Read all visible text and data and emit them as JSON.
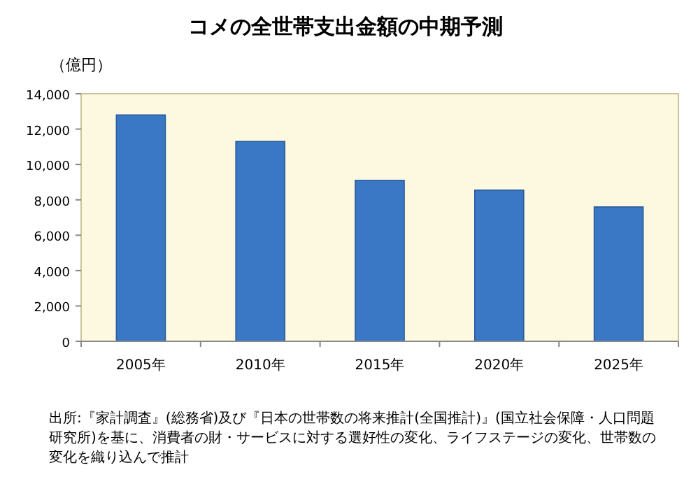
{
  "chart_data": {
    "type": "bar",
    "title": "コメの全世帯支出金額の中期予測",
    "ylabel": "（億円）",
    "categories": [
      "2005年",
      "2010年",
      "2015年",
      "2020年",
      "2025年"
    ],
    "values": [
      12800,
      11300,
      9100,
      8550,
      7600
    ],
    "color": "#3a78c6",
    "ylim": [
      0,
      14000
    ],
    "yticks": [
      {
        "value": 0,
        "label": "0"
      },
      {
        "value": 2000,
        "label": "2,000"
      },
      {
        "value": 4000,
        "label": "4,000"
      },
      {
        "value": 6000,
        "label": "6,000"
      },
      {
        "value": 8000,
        "label": "8,000"
      },
      {
        "value": 10000,
        "label": "10,000"
      },
      {
        "value": 12000,
        "label": "12,000"
      },
      {
        "value": 14000,
        "label": "14,000"
      }
    ],
    "grid": false,
    "annotations": [
      "出所:『家計調査』(総務省)及び『日本の世帯数の将来推計(全国推計)』(国立社会保障・人口問題研究所)を基に、消費者の財・サービスに対する選好性の変化、ライフステージの変化、世帯数の変化を織り込んで推計"
    ]
  }
}
